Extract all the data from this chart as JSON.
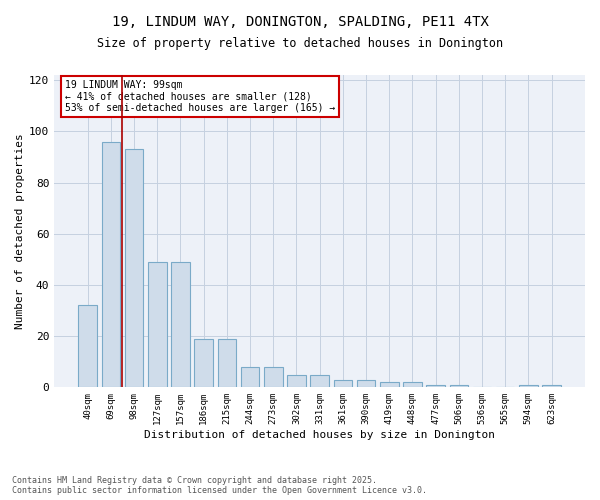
{
  "title_line1": "19, LINDUM WAY, DONINGTON, SPALDING, PE11 4TX",
  "title_line2": "Size of property relative to detached houses in Donington",
  "xlabel": "Distribution of detached houses by size in Donington",
  "ylabel": "Number of detached properties",
  "categories": [
    "40sqm",
    "69sqm",
    "98sqm",
    "127sqm",
    "157sqm",
    "186sqm",
    "215sqm",
    "244sqm",
    "273sqm",
    "302sqm",
    "331sqm",
    "361sqm",
    "390sqm",
    "419sqm",
    "448sqm",
    "477sqm",
    "506sqm",
    "536sqm",
    "565sqm",
    "594sqm",
    "623sqm"
  ],
  "bar_values": [
    32,
    96,
    93,
    49,
    49,
    19,
    19,
    8,
    8,
    5,
    5,
    3,
    3,
    2,
    2,
    1,
    1,
    0,
    0,
    1,
    1
  ],
  "bar_color": "#cfdcea",
  "bar_edge_color": "#7aaac8",
  "vline_position": 1.5,
  "vline_color": "#aa0000",
  "annotation_text": "19 LINDUM WAY: 99sqm\n← 41% of detached houses are smaller (128)\n53% of semi-detached houses are larger (165) →",
  "annotation_box_edgecolor": "#cc0000",
  "ylim_max": 122,
  "yticks": [
    0,
    20,
    40,
    60,
    80,
    100,
    120
  ],
  "grid_color": "#c5d0e0",
  "plot_bg_color": "#edf1f8",
  "footer_text": "Contains HM Land Registry data © Crown copyright and database right 2025.\nContains public sector information licensed under the Open Government Licence v3.0.",
  "fig_width": 6.0,
  "fig_height": 5.0,
  "dpi": 100
}
